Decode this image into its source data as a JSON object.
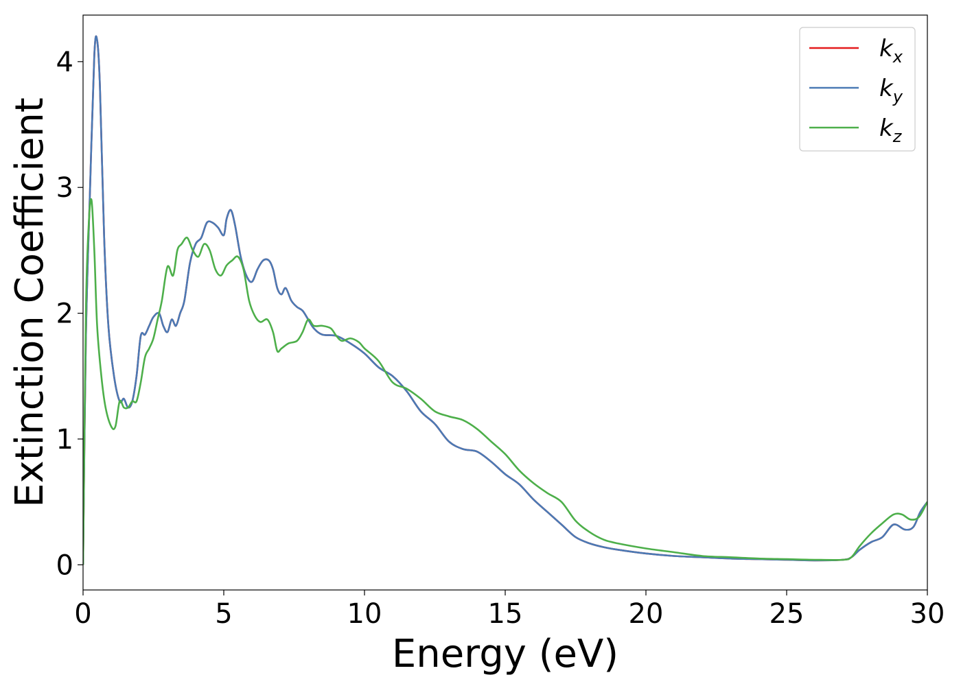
{
  "chart_data": {
    "type": "line",
    "title": "",
    "xlabel": "Energy (eV)",
    "ylabel": "Extinction Coefficient",
    "xlim": [
      0,
      30
    ],
    "ylim": [
      -0.2,
      4.37
    ],
    "xticks": [
      0,
      5,
      10,
      15,
      20,
      25,
      30
    ],
    "yticks": [
      0,
      1,
      2,
      3,
      4
    ],
    "grid": false,
    "legend_position": "top-right",
    "series": [
      {
        "name": "k",
        "subscript": "x",
        "color": "#e41a1c",
        "x": [
          0,
          0.1,
          0.25,
          0.4,
          0.5,
          0.6,
          0.75,
          0.9,
          1.1,
          1.3,
          1.45,
          1.6,
          1.75,
          1.9,
          2.05,
          2.2,
          2.35,
          2.5,
          2.7,
          2.85,
          3.0,
          3.15,
          3.3,
          3.45,
          3.6,
          3.8,
          4.0,
          4.2,
          4.4,
          4.6,
          4.8,
          5.0,
          5.1,
          5.25,
          5.4,
          5.6,
          5.8,
          6.0,
          6.2,
          6.4,
          6.6,
          6.75,
          6.9,
          7.05,
          7.2,
          7.4,
          7.6,
          7.8,
          8.0,
          8.2,
          8.5,
          9.0,
          9.5,
          10.0,
          10.5,
          11.0,
          11.5,
          12.0,
          12.5,
          13.0,
          13.5,
          14.0,
          14.5,
          15.0,
          15.5,
          16.0,
          16.5,
          17.0,
          17.5,
          18.0,
          18.5,
          19.0,
          20.0,
          21.0,
          22.0,
          23.0,
          24.0,
          25.0,
          26.0,
          27.0,
          27.3,
          27.6,
          28.0,
          28.4,
          28.8,
          29.2,
          29.5,
          29.75,
          30.0
        ],
        "values": [
          0.0,
          1.8,
          3.0,
          4.05,
          4.17,
          3.8,
          2.6,
          1.9,
          1.5,
          1.3,
          1.32,
          1.25,
          1.3,
          1.5,
          1.82,
          1.83,
          1.9,
          1.97,
          2.0,
          1.9,
          1.85,
          1.95,
          1.9,
          2.0,
          2.1,
          2.4,
          2.55,
          2.6,
          2.72,
          2.72,
          2.68,
          2.62,
          2.75,
          2.82,
          2.7,
          2.45,
          2.3,
          2.25,
          2.35,
          2.42,
          2.42,
          2.35,
          2.2,
          2.15,
          2.2,
          2.1,
          2.05,
          2.02,
          1.95,
          1.88,
          1.83,
          1.82,
          1.76,
          1.68,
          1.57,
          1.5,
          1.38,
          1.22,
          1.12,
          0.98,
          0.92,
          0.9,
          0.82,
          0.72,
          0.64,
          0.52,
          0.42,
          0.32,
          0.22,
          0.17,
          0.14,
          0.12,
          0.09,
          0.07,
          0.06,
          0.05,
          0.045,
          0.04,
          0.035,
          0.04,
          0.06,
          0.12,
          0.18,
          0.22,
          0.32,
          0.28,
          0.3,
          0.42,
          0.5
        ]
      },
      {
        "name": "k",
        "subscript": "y",
        "color": "#4a7ab5",
        "x": [
          0,
          0.1,
          0.25,
          0.4,
          0.5,
          0.6,
          0.75,
          0.9,
          1.1,
          1.3,
          1.45,
          1.6,
          1.75,
          1.9,
          2.05,
          2.2,
          2.35,
          2.5,
          2.7,
          2.85,
          3.0,
          3.15,
          3.3,
          3.45,
          3.6,
          3.8,
          4.0,
          4.2,
          4.4,
          4.6,
          4.8,
          5.0,
          5.1,
          5.25,
          5.4,
          5.6,
          5.8,
          6.0,
          6.2,
          6.4,
          6.6,
          6.75,
          6.9,
          7.05,
          7.2,
          7.4,
          7.6,
          7.8,
          8.0,
          8.2,
          8.5,
          9.0,
          9.5,
          10.0,
          10.5,
          11.0,
          11.5,
          12.0,
          12.5,
          13.0,
          13.5,
          14.0,
          14.5,
          15.0,
          15.5,
          16.0,
          16.5,
          17.0,
          17.5,
          18.0,
          18.5,
          19.0,
          20.0,
          21.0,
          22.0,
          23.0,
          24.0,
          25.0,
          26.0,
          27.0,
          27.3,
          27.6,
          28.0,
          28.4,
          28.8,
          29.2,
          29.5,
          29.75,
          30.0
        ],
        "values": [
          0.0,
          1.8,
          3.0,
          4.05,
          4.17,
          3.8,
          2.6,
          1.9,
          1.5,
          1.3,
          1.32,
          1.25,
          1.3,
          1.5,
          1.82,
          1.83,
          1.9,
          1.97,
          2.0,
          1.9,
          1.85,
          1.95,
          1.9,
          2.0,
          2.1,
          2.4,
          2.55,
          2.6,
          2.72,
          2.72,
          2.68,
          2.62,
          2.75,
          2.82,
          2.7,
          2.45,
          2.3,
          2.25,
          2.35,
          2.42,
          2.42,
          2.35,
          2.2,
          2.15,
          2.2,
          2.1,
          2.05,
          2.02,
          1.95,
          1.88,
          1.83,
          1.82,
          1.76,
          1.68,
          1.57,
          1.5,
          1.38,
          1.22,
          1.12,
          0.98,
          0.92,
          0.9,
          0.82,
          0.72,
          0.64,
          0.52,
          0.42,
          0.32,
          0.22,
          0.17,
          0.14,
          0.12,
          0.09,
          0.07,
          0.06,
          0.05,
          0.045,
          0.04,
          0.035,
          0.04,
          0.06,
          0.12,
          0.18,
          0.22,
          0.32,
          0.28,
          0.3,
          0.42,
          0.5
        ]
      },
      {
        "name": "k",
        "subscript": "z",
        "color": "#4daf4a",
        "x": [
          0,
          0.1,
          0.2,
          0.3,
          0.4,
          0.5,
          0.65,
          0.8,
          1.0,
          1.15,
          1.3,
          1.45,
          1.6,
          1.75,
          1.9,
          2.05,
          2.2,
          2.35,
          2.5,
          2.65,
          2.8,
          3.0,
          3.2,
          3.35,
          3.5,
          3.7,
          3.9,
          4.1,
          4.3,
          4.5,
          4.7,
          4.9,
          5.1,
          5.3,
          5.5,
          5.7,
          5.9,
          6.1,
          6.3,
          6.55,
          6.75,
          6.9,
          7.05,
          7.3,
          7.6,
          7.8,
          8.0,
          8.2,
          8.5,
          8.8,
          9.0,
          9.2,
          9.5,
          9.8,
          10.0,
          10.5,
          11.0,
          11.5,
          12.0,
          12.5,
          13.0,
          13.5,
          14.0,
          14.5,
          15.0,
          15.5,
          16.0,
          16.5,
          17.0,
          17.5,
          18.0,
          18.5,
          19.0,
          20.0,
          21.0,
          22.0,
          23.0,
          24.0,
          25.0,
          26.0,
          27.0,
          27.3,
          27.6,
          28.0,
          28.4,
          28.8,
          29.1,
          29.4,
          29.7,
          30.0
        ],
        "values": [
          0.0,
          2.0,
          2.7,
          2.9,
          2.5,
          1.9,
          1.5,
          1.25,
          1.1,
          1.1,
          1.3,
          1.25,
          1.25,
          1.3,
          1.3,
          1.45,
          1.65,
          1.72,
          1.8,
          1.95,
          2.1,
          2.37,
          2.3,
          2.5,
          2.55,
          2.6,
          2.5,
          2.45,
          2.55,
          2.5,
          2.35,
          2.3,
          2.38,
          2.42,
          2.45,
          2.35,
          2.1,
          1.98,
          1.93,
          1.95,
          1.85,
          1.7,
          1.72,
          1.76,
          1.78,
          1.85,
          1.95,
          1.9,
          1.9,
          1.88,
          1.82,
          1.78,
          1.8,
          1.77,
          1.72,
          1.62,
          1.45,
          1.4,
          1.32,
          1.22,
          1.18,
          1.15,
          1.08,
          0.98,
          0.88,
          0.75,
          0.65,
          0.57,
          0.5,
          0.35,
          0.26,
          0.2,
          0.17,
          0.13,
          0.1,
          0.07,
          0.06,
          0.05,
          0.045,
          0.04,
          0.04,
          0.06,
          0.15,
          0.25,
          0.33,
          0.4,
          0.4,
          0.36,
          0.38,
          0.5
        ]
      }
    ]
  }
}
